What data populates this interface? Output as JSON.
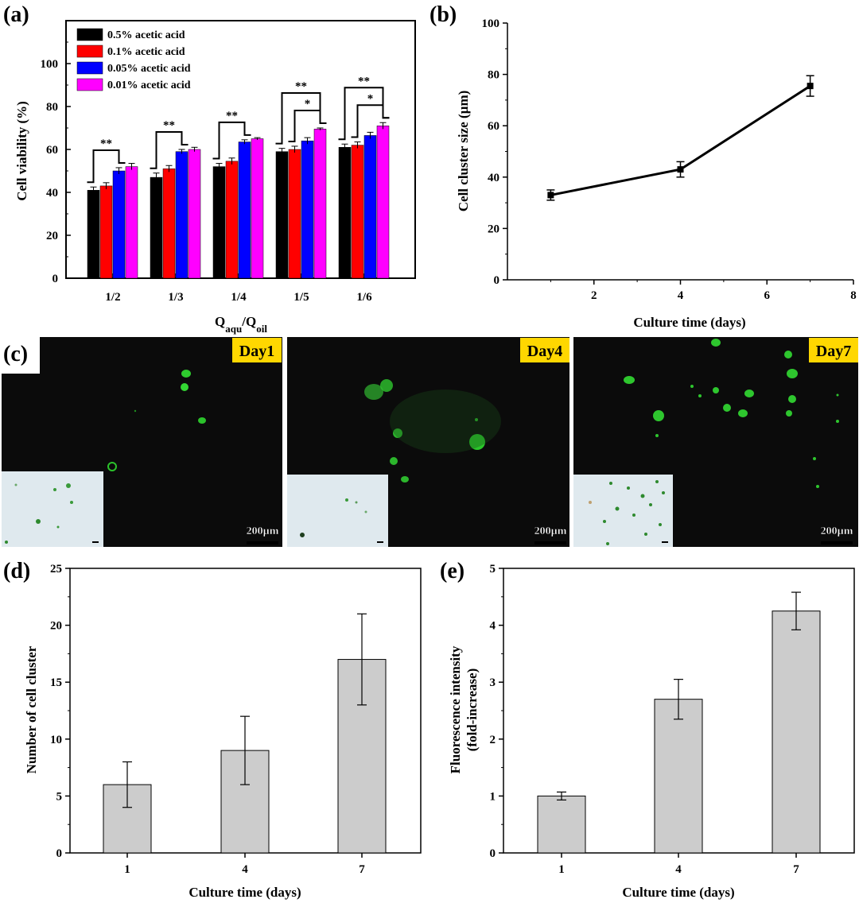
{
  "panels": {
    "a": {
      "label": "(a)",
      "chart_data": {
        "type": "bar",
        "categories": [
          "1/2",
          "1/3",
          "1/4",
          "1/5",
          "1/6"
        ],
        "series": [
          {
            "name": "0.5% acetic acid",
            "color": "#000000",
            "values": [
              41,
              47,
              52,
              59,
              61
            ],
            "errors": [
              1.5,
              2,
              1.5,
              1.5,
              1.5
            ]
          },
          {
            "name": "0.1% acetic acid",
            "color": "#ff0000",
            "values": [
              43,
              51,
              54.5,
              60,
              62
            ],
            "errors": [
              1.5,
              1.5,
              1.5,
              1.5,
              1.5
            ]
          },
          {
            "name": "0.05% acetic acid",
            "color": "#0000ff",
            "values": [
              50,
              59,
              63.5,
              64,
              66.5
            ],
            "errors": [
              1.5,
              1,
              1,
              1.5,
              1.5
            ]
          },
          {
            "name": "0.01% acetic acid",
            "color": "#ff00ff",
            "values": [
              52,
              60,
              65,
              69.5,
              71
            ],
            "errors": [
              1.5,
              1,
              0.5,
              0.5,
              1.5
            ]
          }
        ],
        "xlabel_main": "Q",
        "xlabel_sub1": "aqu",
        "xlabel_mid": "/Q",
        "xlabel_sub2": "oil",
        "ylabel": "Cell viability (%)",
        "ylim": [
          0,
          120
        ],
        "yticks": [
          0,
          20,
          40,
          60,
          80,
          100
        ],
        "legend_position": "top-left",
        "significance": [
          {
            "group": 0,
            "pairs": [
              [
                0,
                2,
                "**"
              ]
            ]
          },
          {
            "group": 1,
            "pairs": [
              [
                0,
                2,
                "**"
              ]
            ]
          },
          {
            "group": 2,
            "pairs": [
              [
                0,
                2,
                "**"
              ]
            ]
          },
          {
            "group": 3,
            "pairs": [
              [
                1,
                3,
                "*"
              ],
              [
                0,
                3,
                "**"
              ]
            ]
          },
          {
            "group": 4,
            "pairs": [
              [
                1,
                3,
                "*"
              ],
              [
                0,
                3,
                "**"
              ]
            ]
          }
        ]
      }
    },
    "b": {
      "label": "(b)",
      "chart_data": {
        "type": "line",
        "x": [
          1,
          4,
          7
        ],
        "y": [
          33,
          43,
          75.5
        ],
        "errors": [
          2,
          3,
          4
        ],
        "xlabel": "Culture time (days)",
        "ylabel": "Cell cluster size (µm)",
        "xlim": [
          0,
          8
        ],
        "ylim": [
          0,
          100
        ],
        "xticks": [
          2,
          4,
          6,
          8
        ],
        "yticks": [
          0,
          20,
          40,
          60,
          80,
          100
        ]
      }
    },
    "c": {
      "label": "(c)",
      "images": [
        {
          "day": "Day1",
          "scale": "200µm"
        },
        {
          "day": "Day4",
          "scale": "200µm"
        },
        {
          "day": "Day7",
          "scale": "200µm"
        }
      ]
    },
    "d": {
      "label": "(d)",
      "chart_data": {
        "type": "bar",
        "categories": [
          "1",
          "4",
          "7"
        ],
        "values": [
          6,
          9,
          17
        ],
        "errors": [
          2,
          3,
          4
        ],
        "xlabel": "Culture time (days)",
        "ylabel": "Number of cell cluster",
        "ylim": [
          0,
          25
        ],
        "yticks": [
          0,
          5,
          10,
          15,
          20,
          25
        ],
        "bar_color": "#cccccc"
      }
    },
    "e": {
      "label": "(e)",
      "chart_data": {
        "type": "bar",
        "categories": [
          "1",
          "4",
          "7"
        ],
        "values": [
          1,
          2.7,
          4.25
        ],
        "errors": [
          0.07,
          0.35,
          0.33
        ],
        "xlabel": "Culture time (days)",
        "ylabel_line1": "Fluorescence intensity",
        "ylabel_line2": "(fold-increase)",
        "ylim": [
          0,
          5
        ],
        "yticks": [
          0,
          1,
          2,
          3,
          4,
          5
        ],
        "bar_color": "#cccccc"
      }
    }
  }
}
